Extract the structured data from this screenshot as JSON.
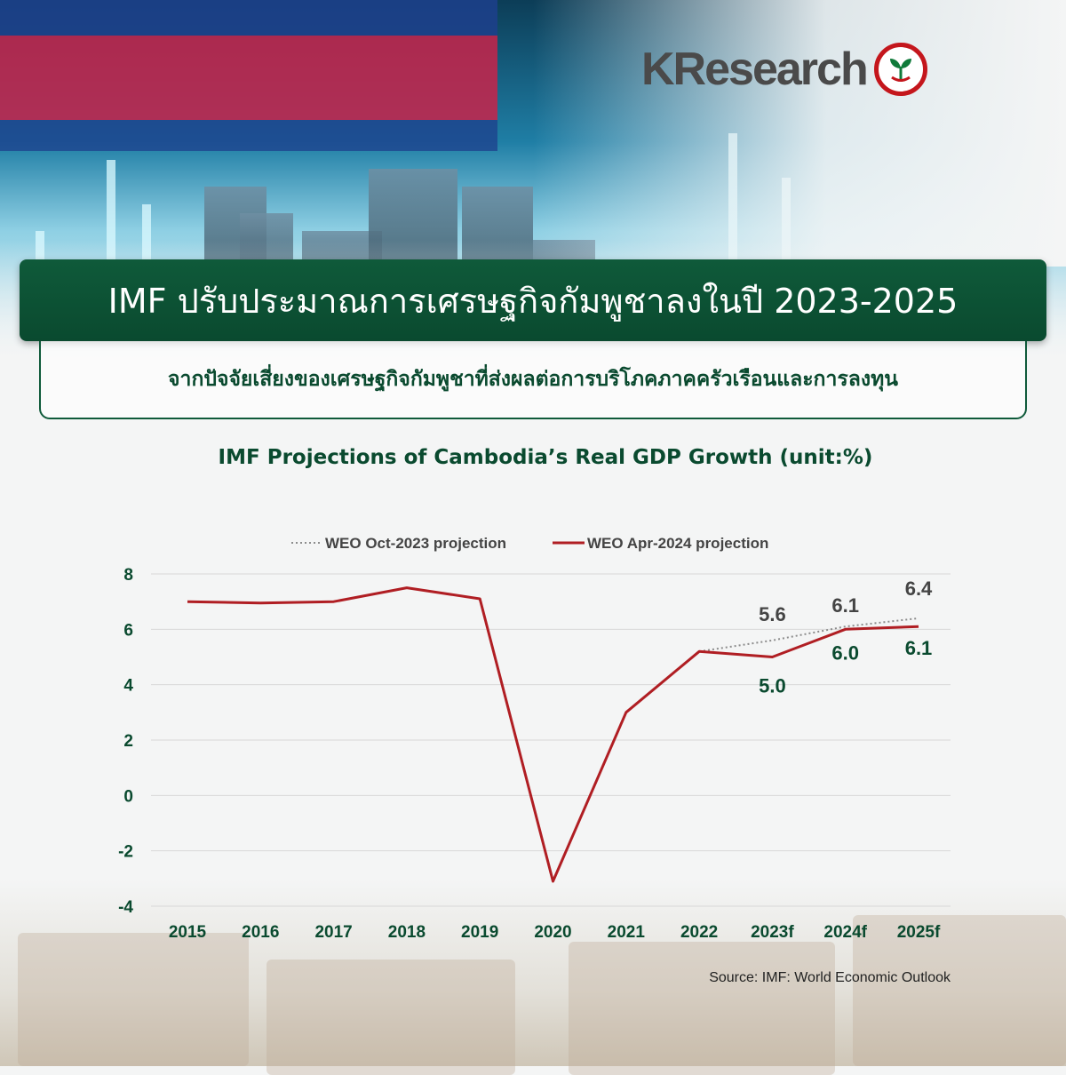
{
  "header": {
    "logo_text": "KResearch",
    "title": "IMF ปรับประมาณการเศรษฐกิจกัมพูชาลงในปี 2023-2025",
    "subtitle": "จากปัจจัยเสี่ยงของเศรษฐกิจกัมพูชาที่ส่งผลต่อการบริโภคภาคครัวเรือนและการลงทุน"
  },
  "chart_data": {
    "type": "line",
    "title": "IMF Projections of Cambodia’s Real GDP Growth (unit:%)",
    "categories": [
      "2015",
      "2016",
      "2017",
      "2018",
      "2019",
      "2020",
      "2021",
      "2022",
      "2023f",
      "2024f",
      "2025f"
    ],
    "ylim": [
      -4,
      8
    ],
    "yticks": [
      "8",
      "6",
      "4",
      "2",
      "0",
      "-2",
      "-4"
    ],
    "grid": true,
    "legend_position": "top",
    "series": [
      {
        "name": "WEO Oct-2023 projection",
        "style": "dotted",
        "color": "#8c8c8c",
        "start_index": 7,
        "values": [
          null,
          null,
          null,
          null,
          null,
          null,
          null,
          5.2,
          5.6,
          6.1,
          6.4
        ],
        "labels": [
          "",
          "",
          "",
          "",
          "",
          "",
          "",
          "",
          "5.6",
          "6.1",
          "6.4"
        ]
      },
      {
        "name": "WEO Apr-2024 projection",
        "style": "solid",
        "color": "#b01e23",
        "values": [
          7.0,
          6.95,
          7.0,
          7.5,
          7.1,
          -3.1,
          3.0,
          5.2,
          5.0,
          6.0,
          6.1
        ],
        "labels": [
          "",
          "",
          "",
          "",
          "",
          "",
          "",
          "",
          "5.0",
          "6.0",
          "6.1"
        ]
      }
    ],
    "source": "Source: IMF: World Economic Outlook"
  }
}
